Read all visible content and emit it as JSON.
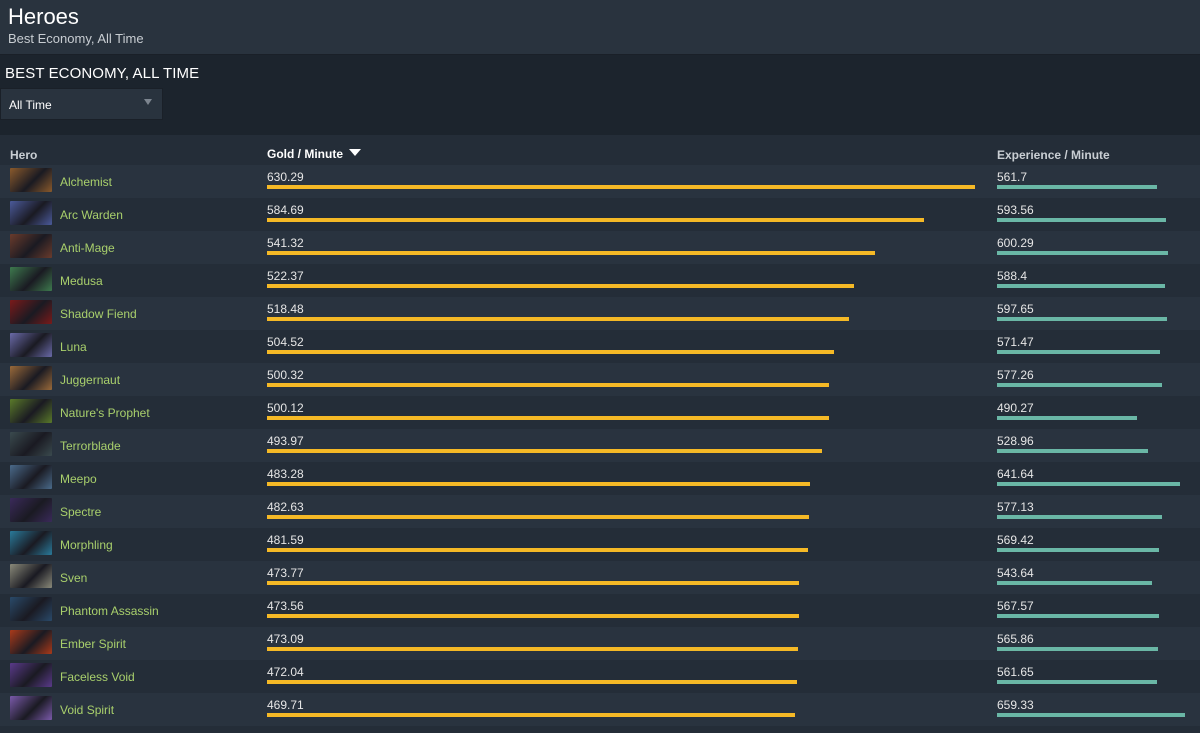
{
  "header": {
    "title": "Heroes",
    "subtitle": "Best Economy, All Time"
  },
  "section": {
    "title": "BEST ECONOMY, ALL TIME"
  },
  "period_select": {
    "value": "All Time"
  },
  "table": {
    "columns": {
      "hero": "Hero",
      "gold": "Gold / Minute",
      "xp": "Experience / Minute"
    },
    "sort_column": "gold",
    "rows": [
      {
        "hero": "Alchemist",
        "gold": "630.29",
        "xp": "561.7",
        "avatar_color": "#8a5a2c"
      },
      {
        "hero": "Arc Warden",
        "gold": "584.69",
        "xp": "593.56",
        "avatar_color": "#4b5a9a"
      },
      {
        "hero": "Anti-Mage",
        "gold": "541.32",
        "xp": "600.29",
        "avatar_color": "#6a3b2c"
      },
      {
        "hero": "Medusa",
        "gold": "522.37",
        "xp": "588.4",
        "avatar_color": "#3e7a4e"
      },
      {
        "hero": "Shadow Fiend",
        "gold": "518.48",
        "xp": "597.65",
        "avatar_color": "#7a1a1a"
      },
      {
        "hero": "Luna",
        "gold": "504.52",
        "xp": "571.47",
        "avatar_color": "#6a6aa8"
      },
      {
        "hero": "Juggernaut",
        "gold": "500.32",
        "xp": "577.26",
        "avatar_color": "#9a6a3a"
      },
      {
        "hero": "Nature's Prophet",
        "gold": "500.12",
        "xp": "490.27",
        "avatar_color": "#5a7a2a"
      },
      {
        "hero": "Terrorblade",
        "gold": "493.97",
        "xp": "528.96",
        "avatar_color": "#3a4a4e"
      },
      {
        "hero": "Meepo",
        "gold": "483.28",
        "xp": "641.64",
        "avatar_color": "#4a6a8a"
      },
      {
        "hero": "Spectre",
        "gold": "482.63",
        "xp": "577.13",
        "avatar_color": "#3a2a5a"
      },
      {
        "hero": "Morphling",
        "gold": "481.59",
        "xp": "569.42",
        "avatar_color": "#2a7a9a"
      },
      {
        "hero": "Sven",
        "gold": "473.77",
        "xp": "543.64",
        "avatar_color": "#8a8a7a"
      },
      {
        "hero": "Phantom Assassin",
        "gold": "473.56",
        "xp": "567.57",
        "avatar_color": "#2a4a6a"
      },
      {
        "hero": "Ember Spirit",
        "gold": "473.09",
        "xp": "565.86",
        "avatar_color": "#aa3a1a"
      },
      {
        "hero": "Faceless Void",
        "gold": "472.04",
        "xp": "561.65",
        "avatar_color": "#5a3a8a"
      },
      {
        "hero": "Void Spirit",
        "gold": "469.71",
        "xp": "659.33",
        "avatar_color": "#7a5aaa"
      }
    ]
  },
  "colors": {
    "gold_bar": "#f5b926",
    "xp_bar": "#6ab7a6",
    "hero_link": "#a9d06c"
  }
}
